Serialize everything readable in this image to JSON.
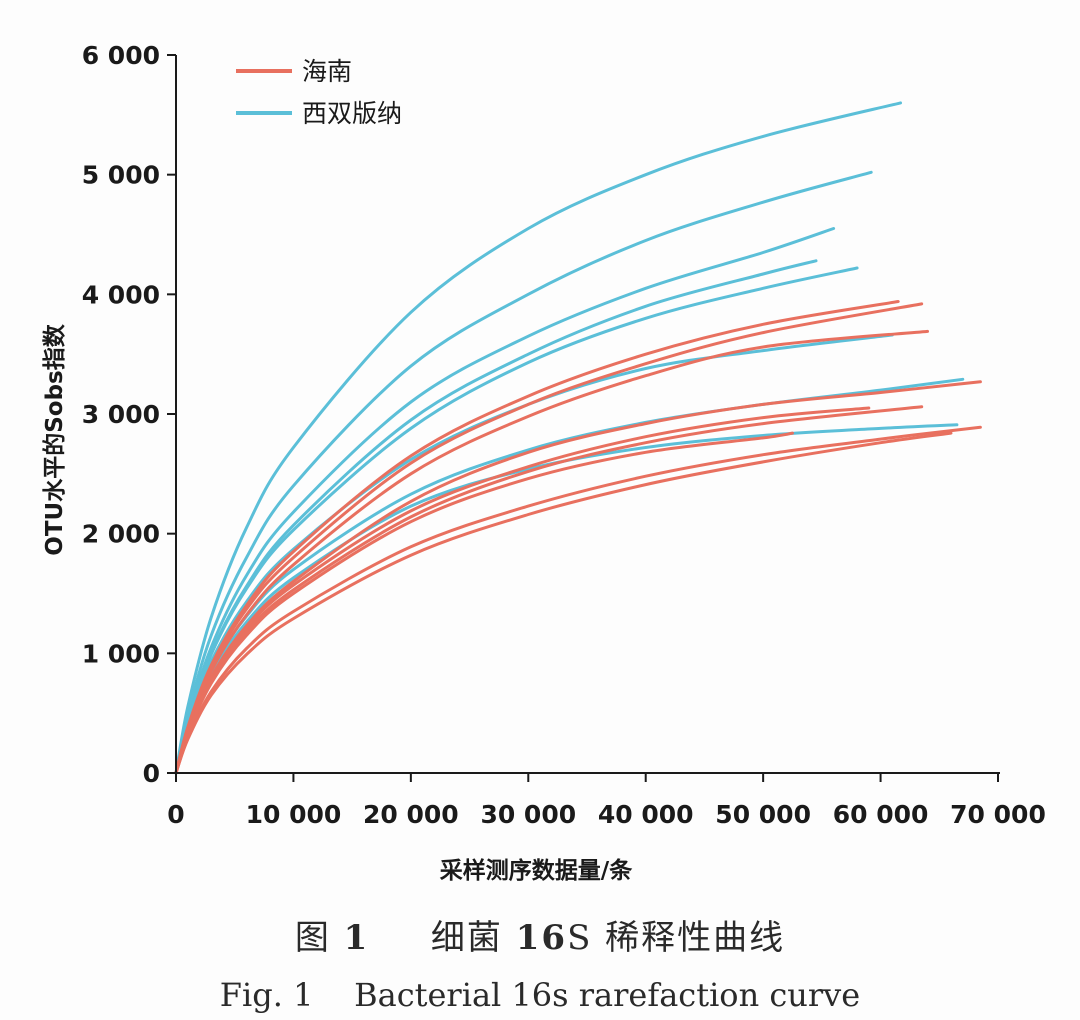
{
  "chart_data": {
    "type": "line",
    "xlabel": "采样测序数据量/条",
    "ylabel": "OTU水平的Sobs指数",
    "xlim": [
      0,
      70000
    ],
    "ylim": [
      0,
      6000
    ],
    "x_ticks": [
      0,
      10000,
      20000,
      30000,
      40000,
      50000,
      60000,
      70000
    ],
    "x_tick_labels": [
      "0",
      "10 000",
      "20 000",
      "30 000",
      "40 000",
      "50 000",
      "60 000",
      "70 000"
    ],
    "y_ticks": [
      0,
      1000,
      2000,
      3000,
      4000,
      5000,
      6000
    ],
    "y_tick_labels": [
      "0",
      "1 000",
      "2 000",
      "3 000",
      "4 000",
      "5 000",
      "6 000"
    ],
    "grid": false,
    "legend_position": "top-left",
    "legend": [
      {
        "label": "海南",
        "color": "#e8705f"
      },
      {
        "label": "西双版纳",
        "color": "#5bbfd8"
      }
    ],
    "series": [
      {
        "group": "西双版纳",
        "color": "#5bbfd8",
        "x": [
          0,
          1000,
          3000,
          6000,
          10000,
          20000,
          30000,
          40000,
          50000,
          61700
        ],
        "y": [
          0,
          550,
          1300,
          2050,
          2720,
          3850,
          4550,
          5000,
          5320,
          5600
        ]
      },
      {
        "group": "西双版纳",
        "color": "#5bbfd8",
        "x": [
          0,
          1000,
          3000,
          6000,
          10000,
          20000,
          30000,
          40000,
          50000,
          59200
        ],
        "y": [
          0,
          480,
          1150,
          1800,
          2400,
          3400,
          4000,
          4450,
          4770,
          5020
        ]
      },
      {
        "group": "西双版纳",
        "color": "#5bbfd8",
        "x": [
          0,
          1000,
          3000,
          6000,
          10000,
          20000,
          30000,
          40000,
          50000,
          56000
        ],
        "y": [
          0,
          440,
          1050,
          1650,
          2180,
          3100,
          3650,
          4050,
          4350,
          4550
        ]
      },
      {
        "group": "西双版纳",
        "color": "#5bbfd8",
        "x": [
          0,
          1000,
          3000,
          6000,
          10000,
          20000,
          30000,
          40000,
          50000,
          54500
        ],
        "y": [
          0,
          420,
          1000,
          1560,
          2070,
          2950,
          3500,
          3900,
          4170,
          4280
        ]
      },
      {
        "group": "西双版纳",
        "color": "#5bbfd8",
        "x": [
          0,
          1000,
          3000,
          6000,
          10000,
          20000,
          30000,
          40000,
          50000,
          58000
        ],
        "y": [
          0,
          420,
          990,
          1540,
          2030,
          2880,
          3430,
          3800,
          4050,
          4220
        ]
      },
      {
        "group": "西双版纳",
        "color": "#5bbfd8",
        "x": [
          0,
          1000,
          3000,
          6000,
          10000,
          20000,
          30000,
          40000,
          50000,
          61000
        ],
        "y": [
          0,
          400,
          930,
          1430,
          1870,
          2620,
          3080,
          3380,
          3530,
          3660
        ]
      },
      {
        "group": "西双版纳",
        "color": "#5bbfd8",
        "x": [
          0,
          1000,
          3000,
          6000,
          10000,
          20000,
          30000,
          40000,
          50000,
          60000,
          67000
        ],
        "y": [
          0,
          370,
          860,
          1310,
          1700,
          2330,
          2700,
          2930,
          3080,
          3200,
          3290
        ]
      },
      {
        "group": "西双版纳",
        "color": "#5bbfd8",
        "x": [
          0,
          1000,
          3000,
          6000,
          10000,
          20000,
          30000,
          40000,
          50000,
          60000,
          66500
        ],
        "y": [
          0,
          360,
          830,
          1260,
          1630,
          2230,
          2540,
          2720,
          2820,
          2880,
          2910
        ]
      },
      {
        "group": "海南",
        "color": "#e8705f",
        "x": [
          0,
          1000,
          3000,
          6000,
          10000,
          20000,
          30000,
          40000,
          50000,
          61500
        ],
        "y": [
          0,
          380,
          900,
          1400,
          1850,
          2650,
          3150,
          3500,
          3750,
          3940
        ]
      },
      {
        "group": "海南",
        "color": "#e8705f",
        "x": [
          0,
          1000,
          3000,
          6000,
          10000,
          20000,
          30000,
          40000,
          50000,
          63500
        ],
        "y": [
          0,
          370,
          880,
          1370,
          1800,
          2590,
          3080,
          3420,
          3680,
          3920
        ]
      },
      {
        "group": "海南",
        "color": "#e8705f",
        "x": [
          0,
          1000,
          3000,
          6000,
          10000,
          20000,
          30000,
          40000,
          50000,
          64000
        ],
        "y": [
          0,
          360,
          850,
          1320,
          1740,
          2500,
          2980,
          3320,
          3560,
          3690
        ]
      },
      {
        "group": "海南",
        "color": "#e8705f",
        "x": [
          0,
          1000,
          3000,
          6000,
          10000,
          20000,
          30000,
          40000,
          50000,
          60000,
          68500
        ],
        "y": [
          0,
          340,
          800,
          1230,
          1600,
          2270,
          2680,
          2920,
          3080,
          3180,
          3270
        ]
      },
      {
        "group": "海南",
        "color": "#e8705f",
        "x": [
          0,
          1000,
          3000,
          6000,
          10000,
          20000,
          30000,
          40000,
          50000,
          59000
        ],
        "y": [
          0,
          340,
          790,
          1210,
          1570,
          2190,
          2560,
          2810,
          2970,
          3050
        ]
      },
      {
        "group": "海南",
        "color": "#e8705f",
        "x": [
          0,
          1000,
          3000,
          6000,
          10000,
          20000,
          30000,
          40000,
          50000,
          63500
        ],
        "y": [
          0,
          330,
          770,
          1180,
          1530,
          2140,
          2520,
          2760,
          2920,
          3060
        ]
      },
      {
        "group": "海南",
        "color": "#e8705f",
        "x": [
          0,
          1000,
          3000,
          6000,
          10000,
          20000,
          30000,
          40000,
          50000,
          52500
        ],
        "y": [
          0,
          320,
          750,
          1150,
          1500,
          2100,
          2460,
          2680,
          2800,
          2840
        ]
      },
      {
        "group": "海南",
        "color": "#e8705f",
        "x": [
          0,
          1000,
          3000,
          6000,
          10000,
          20000,
          30000,
          40000,
          50000,
          60000,
          68500
        ],
        "y": [
          0,
          290,
          680,
          1040,
          1350,
          1890,
          2230,
          2480,
          2660,
          2790,
          2890
        ]
      },
      {
        "group": "海南",
        "color": "#e8705f",
        "x": [
          0,
          1000,
          3000,
          6000,
          10000,
          20000,
          30000,
          40000,
          50000,
          60000,
          66000
        ],
        "y": [
          0,
          280,
          650,
          990,
          1290,
          1820,
          2160,
          2410,
          2600,
          2760,
          2840
        ]
      }
    ]
  },
  "caption": {
    "cn_prefix": "图",
    "cn_number": "1",
    "cn_title_part1": "细菌",
    "cn_bold_16": "16",
    "cn_title_part2": "S 稀释性曲线",
    "en": "Fig. 1    Bacterial 16s rarefaction curve"
  }
}
